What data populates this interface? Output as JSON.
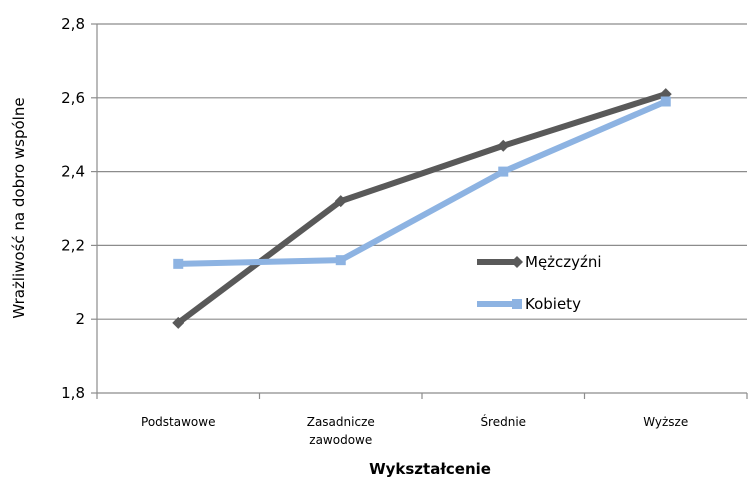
{
  "chart_data": {
    "type": "line",
    "title": "",
    "xlabel": "Wykształcenie",
    "ylabel": "Wrażliwość na dobro wspólne",
    "categories": [
      [
        "Podstawowe"
      ],
      [
        "Zasadnicze",
        "zawodowe"
      ],
      [
        "Średnie"
      ],
      [
        "Wyższe"
      ]
    ],
    "ylim": [
      1.8,
      2.8
    ],
    "yticks": [
      "1,8",
      "2",
      "2,2",
      "2,4",
      "2,6",
      "2,8"
    ],
    "ytick_values": [
      1.8,
      2.0,
      2.2,
      2.4,
      2.6,
      2.8
    ],
    "grid": true,
    "legend_position": "center-right",
    "series": [
      {
        "name": "Mężczyźni",
        "values": [
          1.99,
          2.32,
          2.47,
          2.61
        ],
        "color": "#595959",
        "marker": "diamond"
      },
      {
        "name": "Kobiety",
        "values": [
          2.15,
          2.16,
          2.4,
          2.59
        ],
        "color": "#8db3e2",
        "marker": "square"
      }
    ]
  }
}
